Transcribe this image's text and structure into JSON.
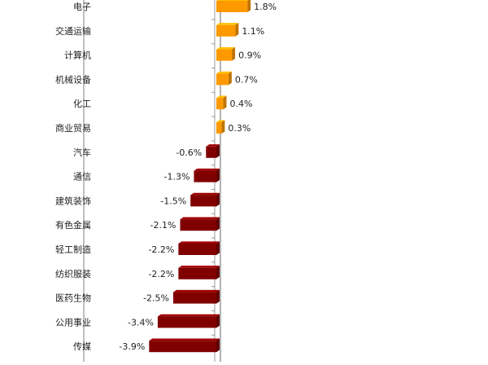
{
  "chart_data": {
    "type": "bar",
    "orientation": "horizontal",
    "categories": [
      "电子",
      "交通运输",
      "计算机",
      "机械设备",
      "化工",
      "商业贸易",
      "汽车",
      "通信",
      "建筑装饰",
      "有色金属",
      "轻工制造",
      "纺织服装",
      "医药生物",
      "公用事业",
      "传媒"
    ],
    "values": [
      1.8,
      1.1,
      0.9,
      0.7,
      0.4,
      0.3,
      -0.6,
      -1.3,
      -1.5,
      -2.1,
      -2.2,
      -2.2,
      -2.5,
      -3.4,
      -3.9
    ],
    "value_labels": [
      "1.8%",
      "1.1%",
      "0.9%",
      "0.7%",
      "0.4%",
      "0.3%",
      "-0.6%",
      "-1.3%",
      "-1.5%",
      "-2.1%",
      "-2.2%",
      "-2.2%",
      "-2.5%",
      "-3.4%",
      "-3.9%"
    ],
    "unit": "%",
    "style": "3d",
    "colors": {
      "positive": "#FF9900",
      "negative": "#800000",
      "axis": "#999999"
    },
    "grid": false,
    "legend": "none"
  }
}
